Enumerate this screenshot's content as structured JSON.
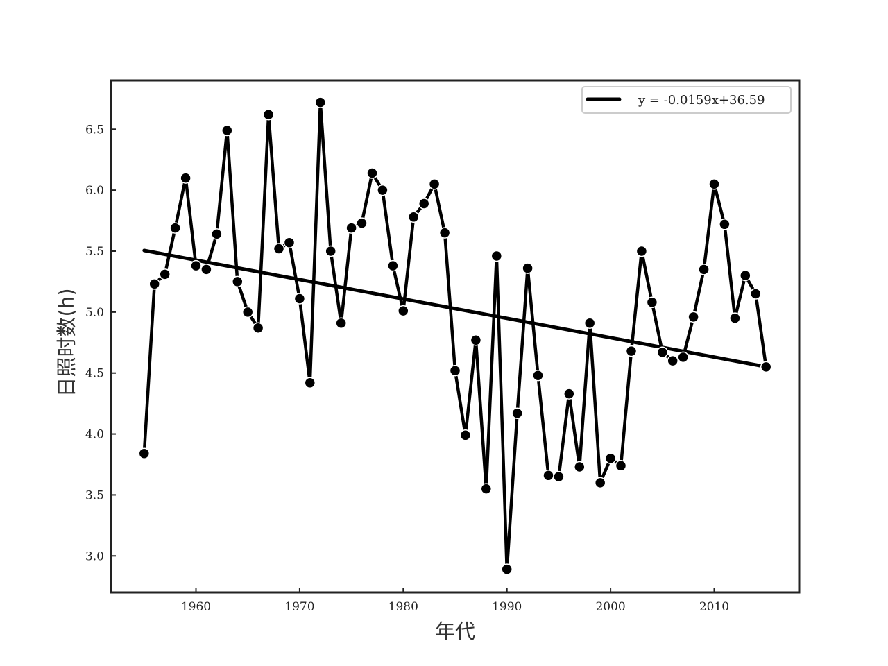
{
  "chart_data": {
    "type": "line",
    "title": "",
    "xlabel": "年代",
    "ylabel": "日照时数(h)",
    "xlim": [
      1951.8,
      2018.2
    ],
    "ylim": [
      2.7,
      6.9
    ],
    "x_ticks": [
      1960,
      1970,
      1980,
      1990,
      2000,
      2010
    ],
    "y_ticks": [
      3.0,
      3.5,
      4.0,
      4.5,
      5.0,
      5.5,
      6.0,
      6.5
    ],
    "x_tick_labels": [
      "1960",
      "1970",
      "1980",
      "1990",
      "2000",
      "2010"
    ],
    "y_tick_labels": [
      "3.0",
      "3.5",
      "4.0",
      "4.5",
      "5.0",
      "5.5",
      "6.0",
      "6.5"
    ],
    "grid": false,
    "legend_position": "top-right",
    "series": [
      {
        "name": "",
        "kind": "line+markers",
        "color": "#000000",
        "x": [
          1955,
          1956,
          1957,
          1958,
          1959,
          1960,
          1961,
          1962,
          1963,
          1964,
          1965,
          1966,
          1967,
          1968,
          1969,
          1970,
          1971,
          1972,
          1973,
          1974,
          1975,
          1976,
          1977,
          1978,
          1979,
          1980,
          1981,
          1982,
          1983,
          1984,
          1985,
          1986,
          1987,
          1988,
          1989,
          1990,
          1991,
          1992,
          1993,
          1994,
          1995,
          1996,
          1997,
          1998,
          1999,
          2000,
          2001,
          2002,
          2003,
          2004,
          2005,
          2006,
          2007,
          2008,
          2009,
          2010,
          2011,
          2012,
          2013,
          2014,
          2015
        ],
        "y": [
          3.84,
          5.23,
          5.31,
          5.69,
          6.1,
          5.38,
          5.35,
          5.64,
          6.49,
          5.25,
          5.0,
          4.87,
          6.62,
          5.52,
          5.57,
          5.11,
          4.42,
          6.72,
          5.5,
          4.91,
          5.69,
          5.73,
          6.14,
          6.0,
          5.38,
          5.01,
          5.78,
          5.89,
          6.05,
          5.65,
          4.52,
          3.99,
          4.77,
          3.55,
          5.46,
          2.89,
          4.17,
          5.36,
          4.48,
          3.66,
          3.65,
          4.33,
          3.73,
          4.91,
          3.6,
          3.8,
          3.74,
          4.68,
          5.5,
          5.08,
          4.67,
          4.6,
          4.63,
          4.96,
          5.35,
          6.05,
          5.72,
          4.95,
          5.3,
          5.15,
          4.55
        ]
      },
      {
        "name": "y = -0.0159x+36.59",
        "kind": "trend",
        "color": "#000000",
        "slope": -0.0159,
        "intercept": 36.59,
        "x_range": [
          1955,
          2015
        ]
      }
    ]
  }
}
